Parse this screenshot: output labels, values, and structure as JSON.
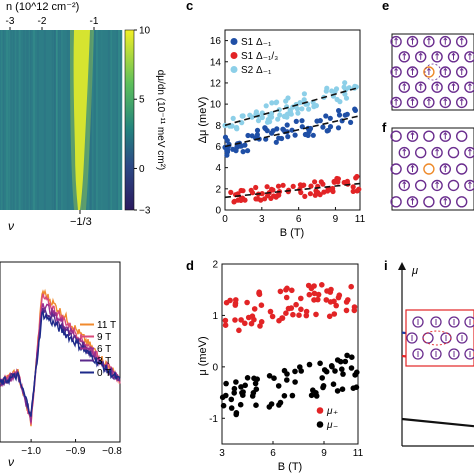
{
  "panel_letters": {
    "c": "c",
    "d": "d",
    "e": "e",
    "f": "f",
    "i": "i"
  },
  "colors": {
    "heatmap_low": "#2b1a5f",
    "heatmap_mid": "#2e8c8a",
    "heatmap_high": "#f2ef25",
    "s1_d1": "#1f4fa6",
    "s1_d13": "#e22426",
    "s2_d1": "#8ccfe8",
    "mu_plus": "#e22426",
    "mu_minus": "#000000",
    "purple": "#6a2d8e",
    "orange": "#ee8a2a",
    "c11": "#f08a2d",
    "c9": "#d94a7a",
    "c6": "#9b2f8e",
    "c3": "#5b2a8c",
    "c0": "#1d2a8a",
    "mu_blue": "#1f3fa6",
    "mu_red": "#e22426"
  },
  "chart_data": [
    {
      "id": "a",
      "type": "heatmap",
      "top_axis_label": "n (10^12 cm⁻²)",
      "top_ticks": [
        "-3",
        "-2",
        "-1"
      ],
      "bottom_axis_label": "ν",
      "bottom_ticks": [
        "−1/3"
      ],
      "colorbar_label": "dμ/dn (10⁻¹¹ meV cm²)",
      "colorbar_ticks": [
        "10",
        "5",
        "0",
        "−3"
      ],
      "colorbar_range": [
        -3,
        10
      ]
    },
    {
      "id": "b",
      "type": "line",
      "xlabel": "ν",
      "x_ticks": [
        "−1.0",
        "−0.9",
        "−0.8"
      ],
      "xlim": [
        -1.07,
        -0.8
      ],
      "series": [
        {
          "name": "11 T"
        },
        {
          "name": "9 T"
        },
        {
          "name": "6 T"
        },
        {
          "name": "3 T"
        },
        {
          "name": "0 T"
        }
      ]
    },
    {
      "id": "c",
      "type": "scatter",
      "xlabel": "B (T)",
      "ylabel": "Δμ (meV)",
      "xlim": [
        0,
        11
      ],
      "ylim": [
        0,
        17
      ],
      "x_ticks": [
        0,
        3,
        6,
        9,
        11
      ],
      "y_ticks": [
        0,
        2,
        4,
        6,
        8,
        10,
        12,
        14,
        16
      ],
      "legend_position": "top-left",
      "series": [
        {
          "name": "S1 Δ₋₁",
          "fit": [
            6.0,
            0.27
          ],
          "trend": [
            6.0,
            8.9
          ]
        },
        {
          "name": "S1 Δ₋₁/₃",
          "fit": [
            1.2,
            0.12
          ],
          "trend": [
            1.2,
            2.5
          ]
        },
        {
          "name": "S2 Δ₋₁",
          "fit": [
            8.0,
            0.33
          ],
          "trend": [
            8.0,
            11.6
          ]
        }
      ]
    },
    {
      "id": "d",
      "type": "scatter",
      "xlabel": "B (T)",
      "ylabel": "μ (meV)",
      "xlim": [
        3,
        11
      ],
      "ylim": [
        -1.5,
        2
      ],
      "x_ticks": [
        3,
        6,
        9,
        11
      ],
      "y_ticks": [
        -1,
        0,
        1,
        2
      ],
      "legend_position": "bottom-right",
      "series": [
        {
          "name": "μ₊",
          "trend": [
            1.0,
            1.4
          ]
        },
        {
          "name": "μ₋",
          "trend": [
            -0.65,
            -0.05
          ]
        }
      ]
    },
    {
      "id": "i",
      "type": "line",
      "ylabel": "μ",
      "series": [
        {
          "name": "dashed",
          "y_start": 0.63,
          "y_end": 0.58
        },
        {
          "name": "red",
          "y_start": 0.5,
          "y_end": 0.46
        },
        {
          "name": "black",
          "y_start": 0.15,
          "y_end": 0.11
        }
      ]
    }
  ]
}
